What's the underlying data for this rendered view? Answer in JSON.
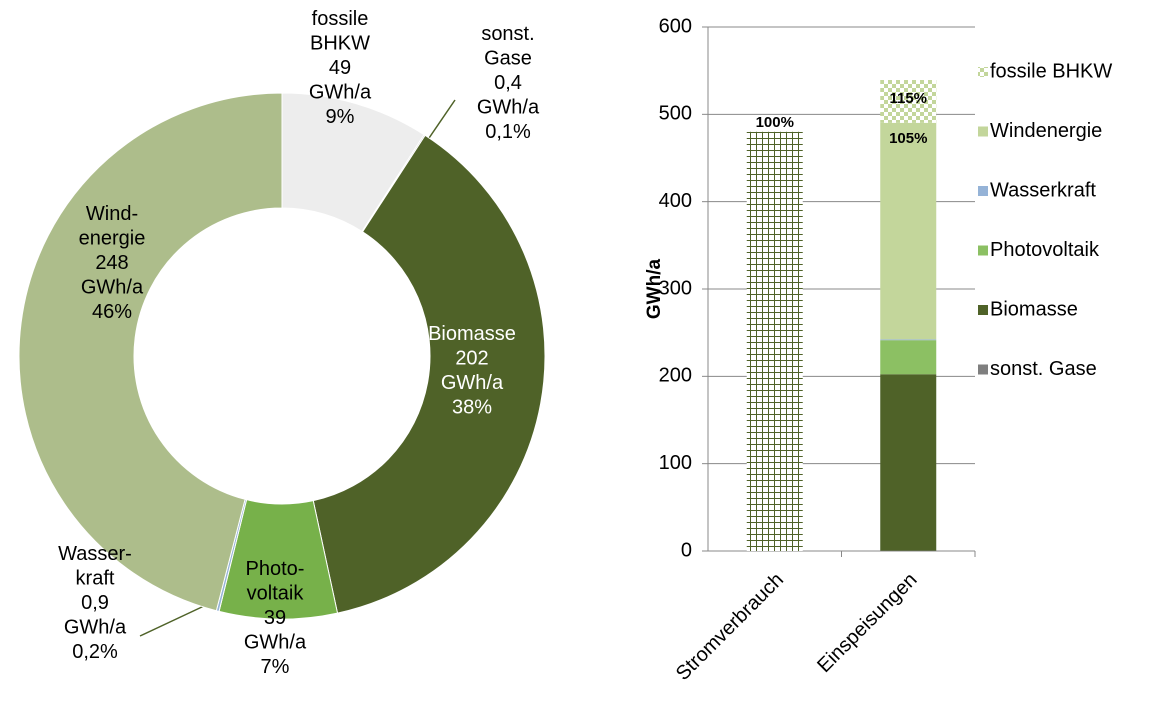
{
  "chart_data": [
    {
      "type": "donut",
      "categories": [
        [
          "fossile",
          "BHKW"
        ],
        [
          "sonst.",
          "Gase"
        ],
        [
          "Biomasse"
        ],
        [
          "Photo-",
          "voltaik"
        ],
        [
          "Wasser-",
          "kraft"
        ],
        [
          "Wind-",
          "energie"
        ]
      ],
      "values": [
        49,
        0.4,
        202,
        39,
        0.9,
        248
      ],
      "value_labels": [
        "49",
        "0,4",
        "202",
        "39",
        "0,9",
        "248"
      ],
      "unit": "GWh/a",
      "percent_labels": [
        "9%",
        "0,1%",
        "38%",
        "7%",
        "0,2%",
        "46%"
      ],
      "colors": [
        "#ededed",
        "#7f7f7f",
        "#4f6228",
        "#77b14a",
        "#95b3d7",
        "#adbd8b"
      ]
    },
    {
      "type": "stacked_bar",
      "categories": [
        "Stromverbrauch",
        "Einspeisungen"
      ],
      "ylabel": "GWh/a",
      "ylim": [
        0,
        600
      ],
      "yticks": [
        0,
        100,
        200,
        300,
        400,
        500,
        600
      ],
      "grid": true,
      "legend": "right",
      "series": [
        {
          "color": "#4f6228",
          "pattern": "grid",
          "values": [
            480,
            null
          ]
        },
        {
          "name": "sonst. Gase",
          "color": "#7f7f7f",
          "values": [
            null,
            0.4
          ]
        },
        {
          "name": "Biomasse",
          "color": "#4f6228",
          "values": [
            null,
            202
          ]
        },
        {
          "name": "Photovoltaik",
          "color": "#8cc063",
          "values": [
            null,
            39
          ]
        },
        {
          "name": "Wasserkraft",
          "color": "#95b3d7",
          "values": [
            null,
            0.9
          ]
        },
        {
          "name": "Windenergie",
          "color": "#c3d69b",
          "values": [
            null,
            248
          ]
        },
        {
          "name": "fossile BHKW",
          "color": "#c3d69b",
          "pattern": "checker",
          "values": [
            null,
            49
          ]
        }
      ],
      "annotations": [
        "100%",
        "105%",
        "115%"
      ]
    }
  ]
}
